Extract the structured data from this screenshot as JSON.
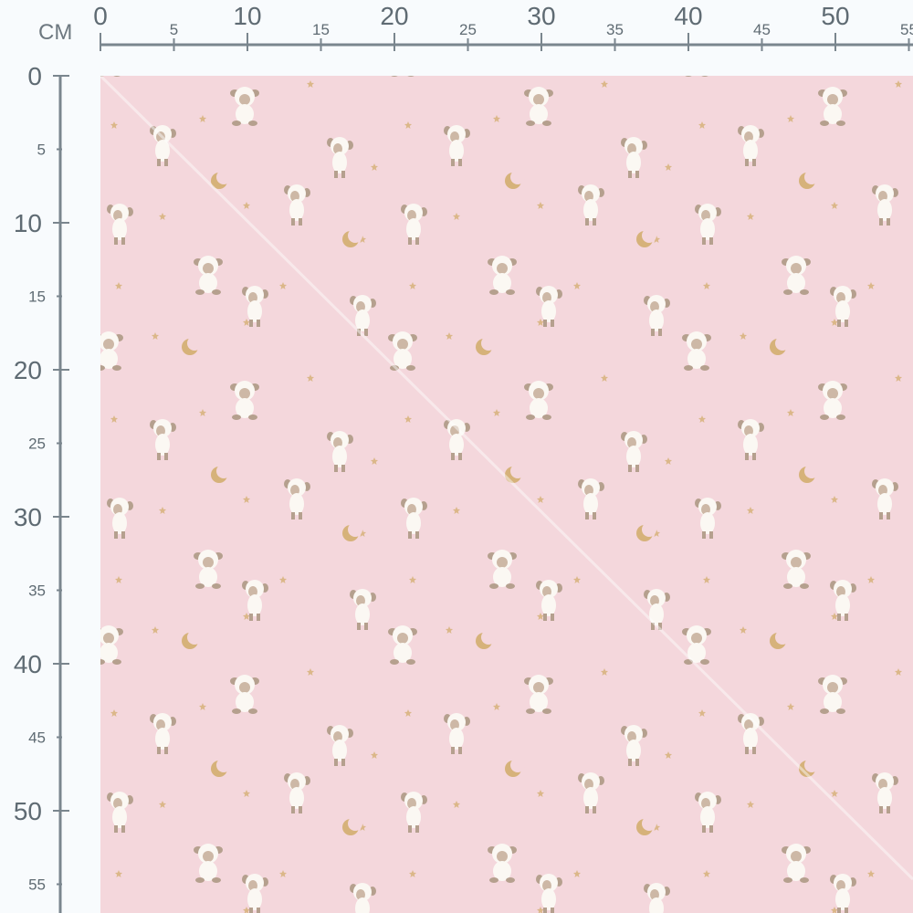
{
  "ruler": {
    "unit": "CM",
    "top_labels": [
      "0",
      "5",
      "10",
      "15",
      "20",
      "25",
      "30",
      "35",
      "40",
      "45",
      "50",
      "55"
    ],
    "left_labels": [
      "0",
      "5",
      "10",
      "15",
      "20",
      "25",
      "30",
      "35",
      "40",
      "45",
      "50",
      "55"
    ],
    "color": "#7a868e"
  },
  "fabric": {
    "background": "#f4d7dc",
    "motifs": [
      "sitting-lamb",
      "standing-lamb",
      "crescent-moon",
      "star"
    ],
    "lamb_color": "#fbf8f3",
    "lamb_ears": "#b5a08e",
    "gold": "#d6b27a"
  }
}
